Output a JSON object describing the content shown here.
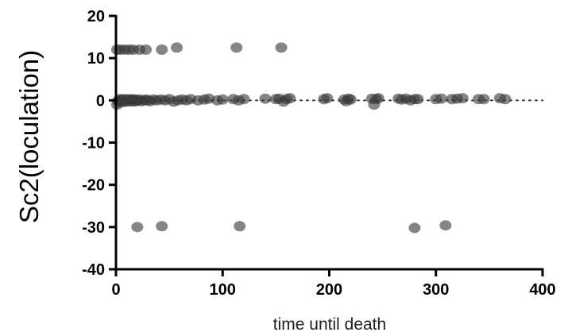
{
  "chart_data": {
    "type": "scatter",
    "title": "",
    "xlabel": "time until death",
    "ylabel": "Sc2(loculation)",
    "xlim": [
      0,
      400
    ],
    "ylim": [
      -40,
      20
    ],
    "x_ticks": [
      "0",
      "100",
      "200",
      "300",
      "400"
    ],
    "y_ticks": [
      "20",
      "10",
      "0",
      "-10",
      "-20",
      "-30",
      "-40"
    ],
    "x_tick_values": [
      0,
      100,
      200,
      300,
      400
    ],
    "y_tick_values": [
      20,
      10,
      0,
      -10,
      -20,
      -30,
      -40
    ],
    "reference_line": {
      "y": 0,
      "style": "dotted"
    },
    "grid": false,
    "legend": "none",
    "colors": {
      "point": "#3a3a3a",
      "axis": "#000000",
      "reference": "#333333"
    },
    "series": [
      {
        "points": [
          {
            "x": 1,
            "y": 12
          },
          {
            "x": 4,
            "y": 12
          },
          {
            "x": 8,
            "y": 12
          },
          {
            "x": 12,
            "y": 12
          },
          {
            "x": 16,
            "y": 12
          },
          {
            "x": 22,
            "y": 12
          },
          {
            "x": 28,
            "y": 12
          },
          {
            "x": 43,
            "y": 12
          },
          {
            "x": 57,
            "y": 12.5
          },
          {
            "x": 113,
            "y": 12.5
          },
          {
            "x": 155,
            "y": 12.5
          },
          {
            "x": 1,
            "y": -1
          },
          {
            "x": 2,
            "y": 0
          },
          {
            "x": 3,
            "y": -0.5
          },
          {
            "x": 4,
            "y": 0.3
          },
          {
            "x": 5,
            "y": -0.2
          },
          {
            "x": 6,
            "y": 0.2
          },
          {
            "x": 7,
            "y": -0.4
          },
          {
            "x": 8,
            "y": 0
          },
          {
            "x": 9,
            "y": 0.3
          },
          {
            "x": 10,
            "y": -0.3
          },
          {
            "x": 11,
            "y": 0
          },
          {
            "x": 12,
            "y": 0.2
          },
          {
            "x": 13,
            "y": -0.2
          },
          {
            "x": 14,
            "y": 0
          },
          {
            "x": 15,
            "y": 0.3
          },
          {
            "x": 16,
            "y": -0.3
          },
          {
            "x": 17,
            "y": 0
          },
          {
            "x": 18,
            "y": 0.2
          },
          {
            "x": 19,
            "y": -0.2
          },
          {
            "x": 20,
            "y": 0
          },
          {
            "x": 22,
            "y": 0.2
          },
          {
            "x": 24,
            "y": -0.2
          },
          {
            "x": 26,
            "y": 0
          },
          {
            "x": 28,
            "y": 0.2
          },
          {
            "x": 30,
            "y": 0
          },
          {
            "x": 32,
            "y": -0.2
          },
          {
            "x": 35,
            "y": 0.2
          },
          {
            "x": 38,
            "y": 0
          },
          {
            "x": 42,
            "y": 0.2
          },
          {
            "x": 46,
            "y": 0
          },
          {
            "x": 50,
            "y": 0.3
          },
          {
            "x": 54,
            "y": -0.3
          },
          {
            "x": 58,
            "y": 0
          },
          {
            "x": 62,
            "y": 0.2
          },
          {
            "x": 66,
            "y": 0
          },
          {
            "x": 70,
            "y": 0.3
          },
          {
            "x": 77,
            "y": 0
          },
          {
            "x": 83,
            "y": 0.2
          },
          {
            "x": 87,
            "y": 0.4
          },
          {
            "x": 95,
            "y": 0
          },
          {
            "x": 100,
            "y": 0.2
          },
          {
            "x": 110,
            "y": 0.3
          },
          {
            "x": 115,
            "y": 0
          },
          {
            "x": 120,
            "y": 0.3
          },
          {
            "x": 140,
            "y": 0.4
          },
          {
            "x": 150,
            "y": 0.3
          },
          {
            "x": 153,
            "y": 0.4
          },
          {
            "x": 157,
            "y": -0.3
          },
          {
            "x": 160,
            "y": 0.3
          },
          {
            "x": 163,
            "y": 0.5
          },
          {
            "x": 195,
            "y": 0.3
          },
          {
            "x": 198,
            "y": 0.5
          },
          {
            "x": 214,
            "y": 0.2
          },
          {
            "x": 216,
            "y": -0.2
          },
          {
            "x": 218,
            "y": 0.4
          },
          {
            "x": 220,
            "y": 0.2
          },
          {
            "x": 240,
            "y": 0.4
          },
          {
            "x": 242,
            "y": -1
          },
          {
            "x": 244,
            "y": 0.3
          },
          {
            "x": 246,
            "y": 0.5
          },
          {
            "x": 265,
            "y": 0.4
          },
          {
            "x": 268,
            "y": 0.2
          },
          {
            "x": 272,
            "y": 0.4
          },
          {
            "x": 276,
            "y": 0
          },
          {
            "x": 280,
            "y": 0.3
          },
          {
            "x": 283,
            "y": 0.3
          },
          {
            "x": 300,
            "y": 0.3
          },
          {
            "x": 305,
            "y": 0.4
          },
          {
            "x": 315,
            "y": 0.3
          },
          {
            "x": 320,
            "y": 0.4
          },
          {
            "x": 325,
            "y": 0.5
          },
          {
            "x": 340,
            "y": 0.3
          },
          {
            "x": 345,
            "y": 0.3
          },
          {
            "x": 360,
            "y": 0.5
          },
          {
            "x": 365,
            "y": 0.3
          },
          {
            "x": 20,
            "y": -30
          },
          {
            "x": 43,
            "y": -29.8
          },
          {
            "x": 116,
            "y": -29.8
          },
          {
            "x": 280,
            "y": -30.2
          },
          {
            "x": 309,
            "y": -29.6
          }
        ]
      }
    ]
  }
}
